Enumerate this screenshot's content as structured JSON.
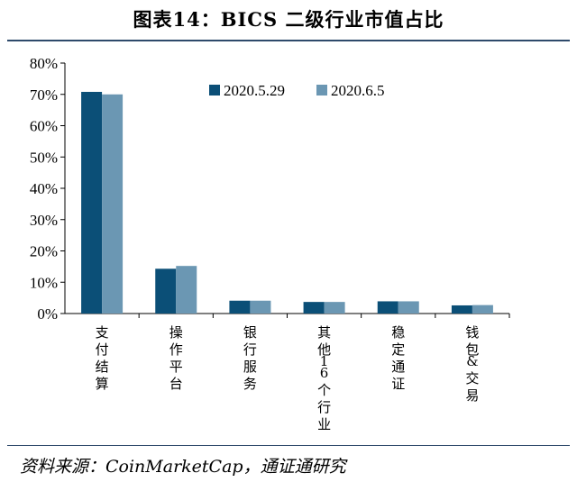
{
  "header": {
    "title": "图表14：BICS 二级行业市值占比"
  },
  "footer": {
    "source": "资料来源：CoinMarketCap，通证通研究"
  },
  "colors": {
    "series1": "#0b4f77",
    "series2": "#6b97b3",
    "rule": "#2e4a6b"
  },
  "chart_data": {
    "type": "bar",
    "title": "图表14：BICS 二级行业市值占比",
    "xlabel": "",
    "ylabel": "",
    "ylim": [
      0,
      80
    ],
    "y_ticks": [
      "0%",
      "10%",
      "20%",
      "30%",
      "40%",
      "50%",
      "60%",
      "70%",
      "80%"
    ],
    "y_tick_values": [
      0,
      10,
      20,
      30,
      40,
      50,
      60,
      70,
      80
    ],
    "categories": [
      "支付结算",
      "操作平台",
      "银行服务",
      "其他16个行业",
      "稳定通证",
      "钱包&交易"
    ],
    "series": [
      {
        "name": "2020.5.29",
        "values": [
          70.8,
          14.3,
          4.1,
          3.7,
          3.9,
          2.6
        ]
      },
      {
        "name": "2020.6.5",
        "values": [
          70.0,
          15.2,
          4.1,
          3.7,
          3.9,
          2.7
        ]
      }
    ],
    "legend": "top-right",
    "grid": false
  }
}
